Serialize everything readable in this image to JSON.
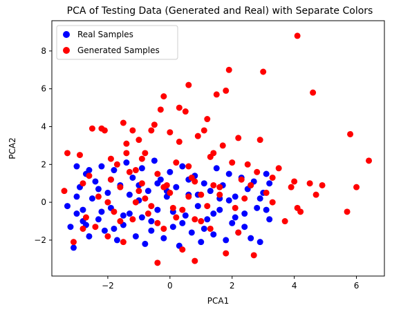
{
  "chart_data": {
    "type": "scatter",
    "title": "PCA of Testing Data (Generated and Real) with Separate Colors",
    "xlabel": "PCA1",
    "ylabel": "PCA2",
    "xlim": [
      -3.8,
      6.9
    ],
    "ylim": [
      -3.9,
      9.6
    ],
    "xticks": [
      -2,
      0,
      2,
      4,
      6
    ],
    "yticks": [
      -2,
      0,
      2,
      4,
      6,
      8
    ],
    "grid": false,
    "legend_position": "top-left",
    "series": [
      {
        "name": "Real Samples",
        "color": "#0000ff",
        "marker": "circle",
        "points": [
          [
            -3.3,
            -0.2
          ],
          [
            -3.2,
            -1.3
          ],
          [
            -3.1,
            -2.4
          ],
          [
            -3.0,
            1.9
          ],
          [
            -3.0,
            -0.6
          ],
          [
            -2.9,
            0.8
          ],
          [
            -2.8,
            -1.0
          ],
          [
            -2.7,
            1.5
          ],
          [
            -2.6,
            -1.8
          ],
          [
            -2.5,
            0.2
          ],
          [
            -2.4,
            1.1
          ],
          [
            -2.3,
            -0.9
          ],
          [
            -2.2,
            1.9
          ],
          [
            -2.1,
            -1.5
          ],
          [
            -2.0,
            0.5
          ],
          [
            -1.9,
            -0.3
          ],
          [
            -1.8,
            1.7
          ],
          [
            -1.7,
            -2.0
          ],
          [
            -1.6,
            0.9
          ],
          [
            -1.5,
            -1.2
          ],
          [
            -1.4,
            2.1
          ],
          [
            -1.3,
            -0.6
          ],
          [
            -1.2,
            1.3
          ],
          [
            -1.1,
            -1.8
          ],
          [
            -1.0,
            0.1
          ],
          [
            -0.9,
            1.8
          ],
          [
            -0.8,
            -2.2
          ],
          [
            -0.7,
            0.6
          ],
          [
            -0.6,
            -1.0
          ],
          [
            -0.5,
            2.2
          ],
          [
            -0.4,
            -0.4
          ],
          [
            -0.3,
            1.2
          ],
          [
            -0.2,
            -1.9
          ],
          [
            -0.1,
            0.3
          ],
          [
            0.0,
            1.6
          ],
          [
            0.1,
            -1.3
          ],
          [
            0.2,
            0.8
          ],
          [
            0.3,
            -2.3
          ],
          [
            0.4,
            1.9
          ],
          [
            0.5,
            -0.7
          ],
          [
            0.6,
            0.4
          ],
          [
            0.7,
            -1.6
          ],
          [
            0.8,
            1.4
          ],
          [
            0.9,
            -0.2
          ],
          [
            1.0,
            -2.1
          ],
          [
            1.1,
            1.0
          ],
          [
            1.2,
            -0.9
          ],
          [
            1.3,
            0.6
          ],
          [
            1.4,
            -1.7
          ],
          [
            1.5,
            1.8
          ],
          [
            1.6,
            -0.4
          ],
          [
            1.7,
            0.9
          ],
          [
            1.8,
            -2.0
          ],
          [
            1.9,
            1.5
          ],
          [
            2.0,
            -1.1
          ],
          [
            2.1,
            0.3
          ],
          [
            2.2,
            -1.6
          ],
          [
            2.3,
            1.3
          ],
          [
            2.4,
            -0.6
          ],
          [
            2.5,
            0.7
          ],
          [
            2.6,
            -1.9
          ],
          [
            2.7,
            1.1
          ],
          [
            2.8,
            -0.3
          ],
          [
            2.9,
            -2.1
          ],
          [
            3.0,
            0.5
          ],
          [
            3.1,
            1.5
          ],
          [
            3.2,
            -0.9
          ],
          [
            -2.6,
            1.7
          ],
          [
            -2.2,
            -0.5
          ],
          [
            -1.8,
            -1.4
          ],
          [
            -1.3,
            0.4
          ],
          [
            -0.9,
            -0.8
          ],
          [
            -0.4,
            1.0
          ],
          [
            0.1,
            -0.5
          ],
          [
            0.6,
            1.2
          ],
          [
            1.1,
            -1.4
          ],
          [
            1.6,
            0.2
          ],
          [
            2.1,
            -0.8
          ],
          [
            2.6,
            0.9
          ],
          [
            3.1,
            -0.4
          ],
          [
            -3.0,
            0.3
          ],
          [
            -2.7,
            -1.2
          ],
          [
            -2.3,
            0.7
          ],
          [
            -1.9,
            1.2
          ],
          [
            -1.5,
            -0.7
          ],
          [
            -1.0,
            0.9
          ],
          [
            -0.6,
            -1.5
          ],
          [
            -0.1,
            0.6
          ],
          [
            0.4,
            -1.1
          ],
          [
            0.9,
            0.4
          ],
          [
            1.4,
            -0.6
          ],
          [
            1.9,
            0.1
          ],
          [
            2.4,
            -1.3
          ],
          [
            2.9,
            0.2
          ],
          [
            3.2,
            1.0
          ],
          [
            -2.8,
            -0.4
          ]
        ]
      },
      {
        "name": "Generated Samples",
        "color": "#ff0000",
        "marker": "circle",
        "points": [
          [
            -3.4,
            0.6
          ],
          [
            -3.3,
            2.6
          ],
          [
            -3.1,
            -2.1
          ],
          [
            -2.9,
            2.5
          ],
          [
            -2.8,
            1.0
          ],
          [
            -2.7,
            -0.8
          ],
          [
            -2.6,
            1.4
          ],
          [
            -2.5,
            3.9
          ],
          [
            -2.4,
            -1.3
          ],
          [
            -2.3,
            0.3
          ],
          [
            -2.2,
            3.9
          ],
          [
            -2.1,
            3.8
          ],
          [
            -2.0,
            -1.8
          ],
          [
            -1.9,
            1.2
          ],
          [
            -1.8,
            -0.5
          ],
          [
            -1.7,
            2.0
          ],
          [
            -1.6,
            0.8
          ],
          [
            -1.5,
            -2.1
          ],
          [
            -1.5,
            4.2
          ],
          [
            -1.4,
            3.1
          ],
          [
            -1.3,
            1.6
          ],
          [
            -1.2,
            3.8
          ],
          [
            -1.1,
            0.0
          ],
          [
            -1.0,
            3.3
          ],
          [
            -0.9,
            1.0
          ],
          [
            -0.8,
            2.6
          ],
          [
            -0.7,
            -0.6
          ],
          [
            -0.6,
            3.8
          ],
          [
            -0.5,
            4.1
          ],
          [
            -0.4,
            1.5
          ],
          [
            -0.3,
            4.9
          ],
          [
            -0.2,
            -1.4
          ],
          [
            -0.2,
            5.6
          ],
          [
            -0.1,
            0.9
          ],
          [
            0.0,
            3.7
          ],
          [
            0.1,
            -0.3
          ],
          [
            0.2,
            2.1
          ],
          [
            0.3,
            5.0
          ],
          [
            0.4,
            -2.5
          ],
          [
            0.5,
            4.8
          ],
          [
            0.6,
            6.2
          ],
          [
            0.7,
            1.3
          ],
          [
            0.8,
            -0.9
          ],
          [
            0.9,
            3.5
          ],
          [
            1.0,
            0.4
          ],
          [
            1.1,
            3.8
          ],
          [
            1.2,
            4.4
          ],
          [
            1.3,
            -1.4
          ],
          [
            1.4,
            2.6
          ],
          [
            1.5,
            5.7
          ],
          [
            1.6,
            0.8
          ],
          [
            1.7,
            3.0
          ],
          [
            1.8,
            5.9
          ],
          [
            1.9,
            7.0
          ],
          [
            2.0,
            2.1
          ],
          [
            2.1,
            -0.3
          ],
          [
            2.2,
            3.4
          ],
          [
            2.3,
            1.2
          ],
          [
            2.5,
            2.0
          ],
          [
            2.7,
            -2.8
          ],
          [
            2.8,
            1.6
          ],
          [
            2.9,
            3.3
          ],
          [
            3.0,
            6.9
          ],
          [
            3.1,
            0.5
          ],
          [
            3.3,
            0.0
          ],
          [
            3.5,
            1.8
          ],
          [
            3.7,
            -1.0
          ],
          [
            3.9,
            0.8
          ],
          [
            4.0,
            1.1
          ],
          [
            4.1,
            -0.3
          ],
          [
            4.1,
            8.8
          ],
          [
            4.2,
            -0.5
          ],
          [
            4.5,
            1.0
          ],
          [
            4.6,
            5.8
          ],
          [
            4.7,
            0.4
          ],
          [
            4.9,
            0.9
          ],
          [
            5.7,
            -0.5
          ],
          [
            5.8,
            3.6
          ],
          [
            6.0,
            0.8
          ],
          [
            6.4,
            2.2
          ],
          [
            -1.2,
            -0.9
          ],
          [
            -0.8,
            0.2
          ],
          [
            -0.4,
            -1.1
          ],
          [
            0.0,
            0.5
          ],
          [
            0.4,
            -0.4
          ],
          [
            0.8,
            1.1
          ],
          [
            1.2,
            -0.2
          ],
          [
            1.6,
            0.4
          ],
          [
            -1.0,
            0.6
          ],
          [
            -0.6,
            -0.2
          ],
          [
            -0.2,
            0.8
          ],
          [
            0.2,
            -0.8
          ],
          [
            0.6,
            0.3
          ],
          [
            1.0,
            -1.0
          ],
          [
            1.4,
            0.9
          ],
          [
            2.4,
            0.2
          ],
          [
            -2.0,
            0.0
          ],
          [
            -1.6,
            -1.0
          ],
          [
            -0.4,
            -3.2
          ],
          [
            0.8,
            -3.1
          ],
          [
            1.8,
            -2.7
          ],
          [
            2.2,
            -1.6
          ],
          [
            2.6,
            0.9
          ],
          [
            -2.8,
            -1.4
          ],
          [
            -1.9,
            2.3
          ],
          [
            -1.4,
            2.6
          ],
          [
            -0.9,
            2.3
          ],
          [
            0.3,
            3.2
          ],
          [
            1.3,
            2.4
          ],
          [
            3.3,
            1.3
          ],
          [
            -1.1,
            1.7
          ],
          [
            0.6,
            1.9
          ]
        ]
      }
    ]
  }
}
